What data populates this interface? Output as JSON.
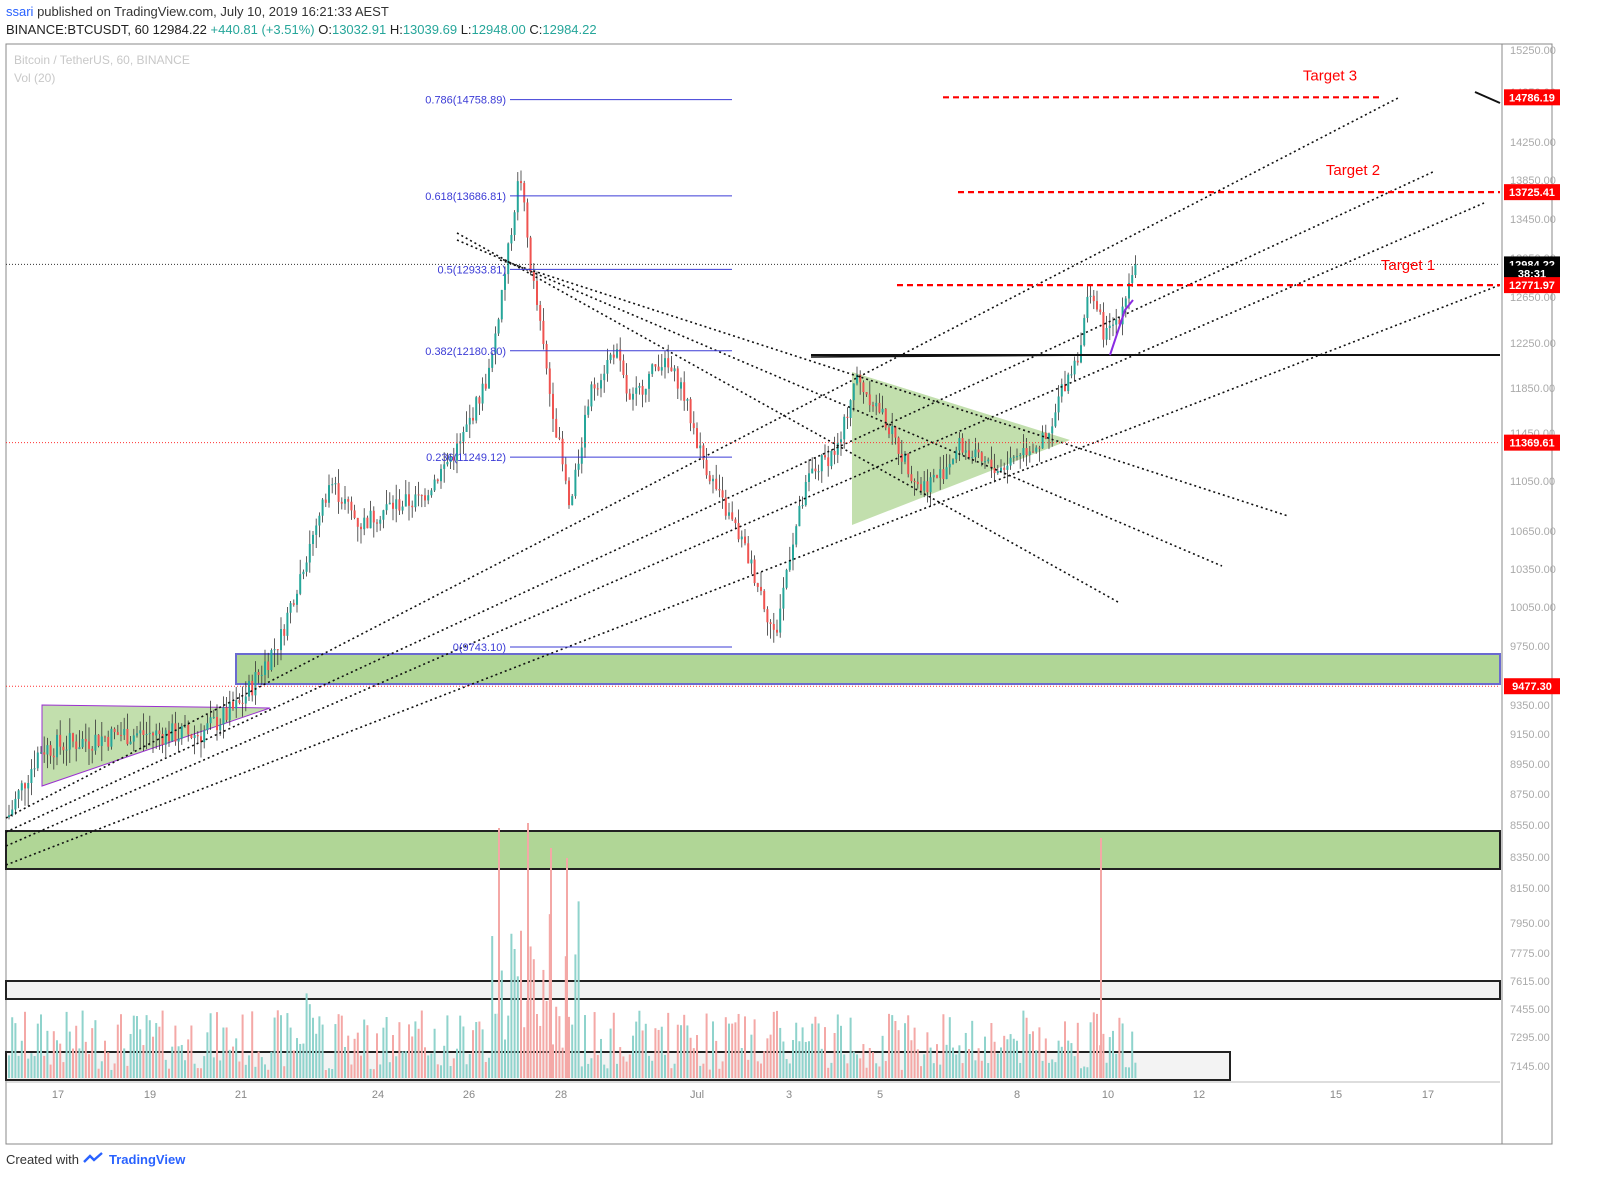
{
  "header": {
    "user": "ssari",
    "published": "published on TradingView.com, July 10, 2019 16:21:33 AEST",
    "symbol": "BINANCE:BTCUSDT, 60",
    "last": "12984.22",
    "change": "+440.81 (+3.51%)",
    "o_label": "O:",
    "o": "13032.91",
    "h_label": "H:",
    "h": "13039.69",
    "l_label": "L:",
    "l": "12948.00",
    "c_label": "C:",
    "c": "12984.22"
  },
  "watermark": {
    "title": "Bitcoin / TetherUS, 60, BINANCE",
    "vol": "Vol (20)"
  },
  "footer": {
    "created": "Created with",
    "brand": "TradingView"
  },
  "colors": {
    "up": "#26a69a",
    "down": "#ef5350",
    "fib": "#3b3bd6",
    "target": "#ff0000",
    "zone": "#8fc46a"
  },
  "chart_data": {
    "type": "candlestick",
    "title": "Bitcoin / TetherUS, 60, BINANCE",
    "last_price": 12984.22,
    "price_ticks": [
      15250,
      14850,
      14250,
      13850,
      13450,
      13050,
      12650,
      12250,
      11850,
      11450,
      11050,
      10650,
      10350,
      10050,
      9750,
      9350,
      9150,
      8950,
      8750,
      8550,
      8350,
      8150,
      7950,
      7775,
      7615,
      7455,
      7295,
      7145
    ],
    "price_tick_labels": [
      "15250.00",
      "14850.00",
      "14250.00",
      "13850.00",
      "13450.00",
      "13050.00",
      "12650.00",
      "12250.00",
      "11850.00",
      "11450.00",
      "11050.00",
      "10650.00",
      "10350.00",
      "10050.00",
      "9750.00",
      "9350.00",
      "9150.00",
      "8950.00",
      "8750.00",
      "8550.00",
      "8350.00",
      "8150.00",
      "7950.00",
      "7775.00",
      "7615.00",
      "7455.00",
      "7295.00",
      "7145.00"
    ],
    "date_ticks": [
      "17",
      "19",
      "21",
      "24",
      "26",
      "28",
      "Jul",
      "3",
      "5",
      "8",
      "10",
      "12",
      "15",
      "17"
    ],
    "price_badges": [
      {
        "label": "14786.19",
        "price": 14786.19,
        "color": "#ff0000"
      },
      {
        "label": "13725.41",
        "price": 13725.41,
        "color": "#ff0000"
      },
      {
        "label": "12984.22",
        "price": 12984.22,
        "color": "#000000"
      },
      {
        "label": "38:31",
        "price": 12890,
        "color": "#000000"
      },
      {
        "label": "12771.97",
        "price": 12771.97,
        "color": "#ff0000"
      },
      {
        "label": "11369.61",
        "price": 11369.61,
        "color": "#ff0000"
      },
      {
        "label": "9477.30",
        "price": 9477.3,
        "color": "#ff0000"
      }
    ],
    "fib_levels": [
      {
        "label": "0.786(14758.89)",
        "price": 14758.89
      },
      {
        "label": "0.618(13686.81)",
        "price": 13686.81
      },
      {
        "label": "0.5(12933.81)",
        "price": 12933.81
      },
      {
        "label": "0.382(12180.80)",
        "price": 12180.8
      },
      {
        "label": "0.236(11249.12)",
        "price": 11249.12
      },
      {
        "label": "0(9743.10)",
        "price": 9743.1
      }
    ],
    "targets": [
      {
        "label": "Target 3",
        "price": 14786.19
      },
      {
        "label": "Target 2",
        "price": 13725.41
      },
      {
        "label": "Target 1",
        "price": 12771.97
      }
    ]
  }
}
